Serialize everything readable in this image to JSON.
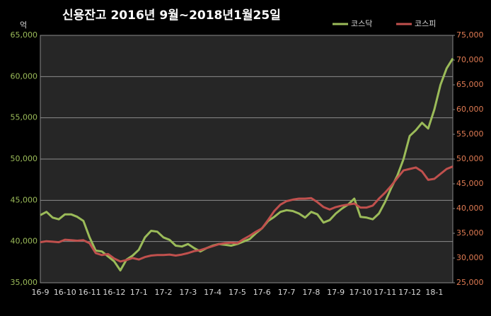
{
  "chart_data": {
    "type": "line",
    "title": "신용잔고 2016년 9월~2018년1월25일",
    "y_unit": "억",
    "categories": [
      "16-9",
      null,
      null,
      null,
      "16-10",
      null,
      null,
      null,
      "16-11",
      null,
      null,
      null,
      "16-12",
      null,
      null,
      null,
      "17-1",
      null,
      null,
      null,
      "17-2",
      null,
      null,
      null,
      "17-3",
      null,
      null,
      null,
      "17-4",
      null,
      null,
      null,
      "17-5",
      null,
      null,
      null,
      "17-6",
      null,
      null,
      null,
      "17-7",
      null,
      null,
      null,
      "17-8",
      null,
      null,
      null,
      "17-9",
      null,
      null,
      null,
      "17-10",
      null,
      null,
      null,
      "17-11",
      null,
      null,
      null,
      "17-12",
      null,
      null,
      null,
      "18-1",
      null,
      null,
      null
    ],
    "series": [
      {
        "name": "코스닥",
        "color": "#9bbb59",
        "axis": "y",
        "values": [
          43200,
          43600,
          42900,
          42700,
          43300,
          43300,
          43000,
          42500,
          40500,
          38900,
          38800,
          38200,
          37600,
          36500,
          37800,
          38300,
          39000,
          40500,
          41300,
          41200,
          40500,
          40200,
          39500,
          39400,
          39700,
          39200,
          38800,
          39200,
          39500,
          39700,
          39600,
          39500,
          39700,
          40000,
          40300,
          41000,
          41600,
          42500,
          43000,
          43600,
          43800,
          43700,
          43400,
          42900,
          43600,
          43300,
          42300,
          42600,
          43400,
          44000,
          44500,
          45200,
          43000,
          42900,
          42700,
          43400,
          44800,
          46500,
          48000,
          50000,
          52800,
          53500,
          54400,
          53700,
          56000,
          59000,
          61000,
          62200
        ]
      },
      {
        "name": "코스피",
        "color": "#c0504d",
        "axis": "y2",
        "values": [
          33200,
          33400,
          33300,
          33200,
          33700,
          33600,
          33500,
          33600,
          33000,
          31000,
          30600,
          30800,
          29900,
          29300,
          29600,
          30000,
          29700,
          30200,
          30500,
          30600,
          30600,
          30700,
          30500,
          30700,
          31000,
          31400,
          31600,
          32000,
          32400,
          32800,
          33000,
          33100,
          33000,
          33800,
          34500,
          35300,
          36000,
          37700,
          39500,
          40800,
          41500,
          41800,
          42000,
          42000,
          42100,
          41300,
          40300,
          39800,
          40300,
          40600,
          40800,
          41000,
          40200,
          40200,
          40600,
          42000,
          43200,
          44600,
          46200,
          47700,
          48000,
          48300,
          47500,
          45800,
          46000,
          47000,
          48000,
          48500
        ]
      }
    ],
    "ylim": [
      35000,
      65000
    ],
    "yticks": [
      {
        "value": 35000,
        "label": "35,000"
      },
      {
        "value": 40000,
        "label": "40,000"
      },
      {
        "value": 45000,
        "label": "45,000"
      },
      {
        "value": 50000,
        "label": "50,000"
      },
      {
        "value": 55000,
        "label": "55,000"
      },
      {
        "value": 60000,
        "label": "60,000"
      },
      {
        "value": 65000,
        "label": "65,000"
      }
    ],
    "y2lim": [
      25000,
      75000
    ],
    "y2ticks": [
      {
        "value": 25000,
        "label": "25,000"
      },
      {
        "value": 30000,
        "label": "30,000"
      },
      {
        "value": 35000,
        "label": "35,000"
      },
      {
        "value": 40000,
        "label": "40,000"
      },
      {
        "value": 45000,
        "label": "45,000"
      },
      {
        "value": 50000,
        "label": "50,000"
      },
      {
        "value": 55000,
        "label": "55,000"
      },
      {
        "value": 60000,
        "label": "60,000"
      },
      {
        "value": 65000,
        "label": "65,000"
      },
      {
        "value": 70000,
        "label": "70,000"
      },
      {
        "value": 75000,
        "label": "75,000"
      }
    ],
    "grid": true,
    "legend": "top-right"
  }
}
